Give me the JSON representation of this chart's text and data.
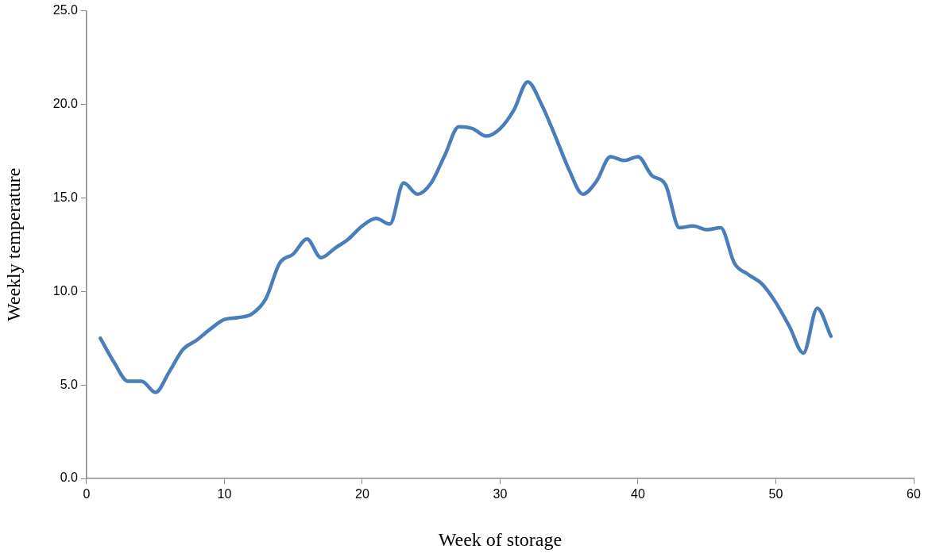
{
  "chart_data": {
    "type": "line",
    "xlabel": "Week of storage",
    "ylabel": "Weekly temperature",
    "x": [
      1,
      2,
      3,
      4,
      5,
      6,
      7,
      8,
      9,
      10,
      11,
      12,
      13,
      14,
      15,
      16,
      17,
      18,
      19,
      20,
      21,
      22,
      23,
      24,
      25,
      26,
      27,
      28,
      29,
      30,
      31,
      32,
      33,
      34,
      35,
      36,
      37,
      38,
      39,
      40,
      41,
      42,
      43,
      44,
      45,
      46,
      47,
      48,
      49,
      50,
      51,
      52,
      53,
      54
    ],
    "series": [
      {
        "color": "#4a7ebb",
        "values": [
          7.5,
          6.2,
          5.2,
          5.2,
          4.6,
          5.7,
          6.9,
          7.4,
          8.0,
          8.5,
          8.6,
          8.8,
          9.6,
          11.5,
          12.0,
          12.8,
          11.8,
          12.3,
          12.8,
          13.5,
          13.9,
          13.6,
          15.8,
          15.2,
          15.8,
          17.3,
          18.8,
          18.7,
          18.3,
          18.7,
          19.7,
          21.2,
          20.0,
          18.3,
          16.5,
          15.2,
          15.9,
          17.2,
          17.0,
          17.2,
          16.2,
          15.7,
          13.4,
          13.5,
          13.3,
          13.4,
          11.5,
          10.9,
          10.4,
          9.4,
          8.1,
          6.7,
          9.1,
          7.6
        ]
      }
    ],
    "xlim": [
      0,
      60
    ],
    "xticks": [
      0,
      10,
      20,
      30,
      40,
      50,
      60
    ],
    "ylim": [
      0,
      25
    ],
    "yticks": [
      {
        "value": 0,
        "label": "0.0"
      },
      {
        "value": 5,
        "label": "5.0"
      },
      {
        "value": 10,
        "label": "10.0"
      },
      {
        "value": 15,
        "label": "15.0"
      },
      {
        "value": 20,
        "label": "20.0"
      },
      {
        "value": 25,
        "label": "25.0"
      }
    ],
    "grid": false,
    "legend": false,
    "marker": "none",
    "line_style": "solid"
  }
}
